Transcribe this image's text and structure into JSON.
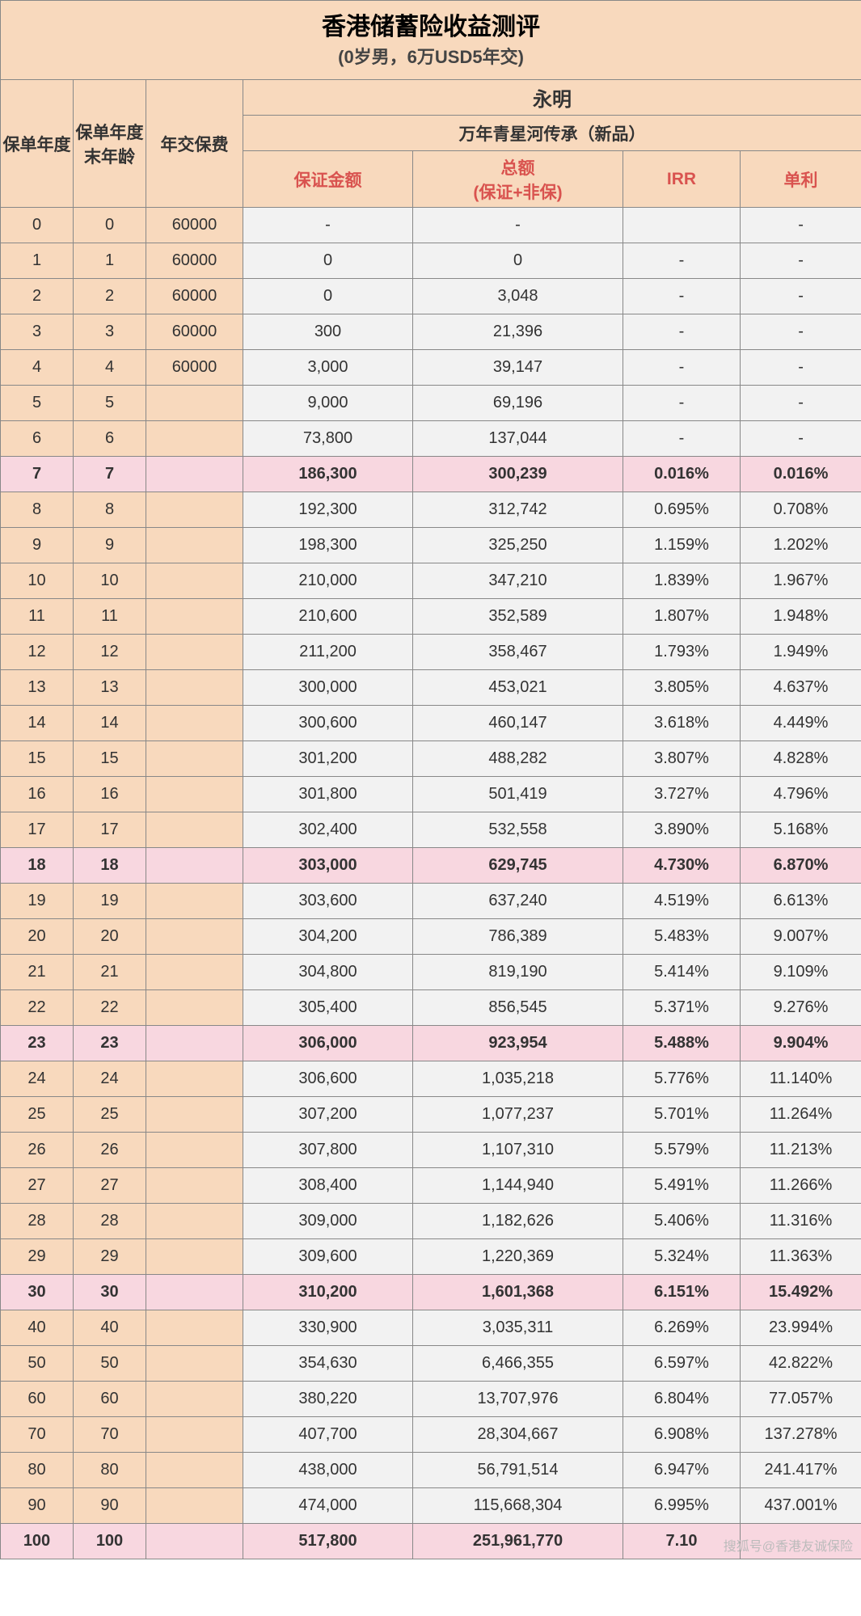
{
  "title": {
    "main": "香港储蓄险收益测评",
    "sub": "(0岁男，6万USD5年交)"
  },
  "headers": {
    "policy_year": "保单年度",
    "age_end": "保单年度末年龄",
    "annual_premium": "年交保费",
    "company": "永明",
    "product": "万年青星河传承（新品）",
    "guaranteed": "保证金额",
    "total_line1": "总额",
    "total_line2": "(保证+非保)",
    "irr": "IRR",
    "simple": "单利"
  },
  "col_widths": {
    "c1": 90,
    "c2": 90,
    "c3": 120,
    "c4": 210,
    "c5": 260,
    "c6": 145,
    "c7": 150
  },
  "colors": {
    "peach": "#f8d9bd",
    "grey": "#f2f2f2",
    "pink": "#f8d7e0",
    "border": "#888888",
    "header_red": "#d9534f"
  },
  "highlight_rows": [
    7,
    18,
    23,
    30,
    100
  ],
  "rows": [
    {
      "yr": "0",
      "age": "0",
      "prem": "60000",
      "g": "-",
      "t": "-",
      "irr": "",
      "s": "-"
    },
    {
      "yr": "1",
      "age": "1",
      "prem": "60000",
      "g": "0",
      "t": "0",
      "irr": "-",
      "s": "-"
    },
    {
      "yr": "2",
      "age": "2",
      "prem": "60000",
      "g": "0",
      "t": "3,048",
      "irr": "-",
      "s": "-"
    },
    {
      "yr": "3",
      "age": "3",
      "prem": "60000",
      "g": "300",
      "t": "21,396",
      "irr": "-",
      "s": "-"
    },
    {
      "yr": "4",
      "age": "4",
      "prem": "60000",
      "g": "3,000",
      "t": "39,147",
      "irr": "-",
      "s": "-"
    },
    {
      "yr": "5",
      "age": "5",
      "prem": "",
      "g": "9,000",
      "t": "69,196",
      "irr": "-",
      "s": "-"
    },
    {
      "yr": "6",
      "age": "6",
      "prem": "",
      "g": "73,800",
      "t": "137,044",
      "irr": "-",
      "s": "-"
    },
    {
      "yr": "7",
      "age": "7",
      "prem": "",
      "g": "186,300",
      "t": "300,239",
      "irr": "0.016%",
      "s": "0.016%"
    },
    {
      "yr": "8",
      "age": "8",
      "prem": "",
      "g": "192,300",
      "t": "312,742",
      "irr": "0.695%",
      "s": "0.708%"
    },
    {
      "yr": "9",
      "age": "9",
      "prem": "",
      "g": "198,300",
      "t": "325,250",
      "irr": "1.159%",
      "s": "1.202%"
    },
    {
      "yr": "10",
      "age": "10",
      "prem": "",
      "g": "210,000",
      "t": "347,210",
      "irr": "1.839%",
      "s": "1.967%"
    },
    {
      "yr": "11",
      "age": "11",
      "prem": "",
      "g": "210,600",
      "t": "352,589",
      "irr": "1.807%",
      "s": "1.948%"
    },
    {
      "yr": "12",
      "age": "12",
      "prem": "",
      "g": "211,200",
      "t": "358,467",
      "irr": "1.793%",
      "s": "1.949%"
    },
    {
      "yr": "13",
      "age": "13",
      "prem": "",
      "g": "300,000",
      "t": "453,021",
      "irr": "3.805%",
      "s": "4.637%"
    },
    {
      "yr": "14",
      "age": "14",
      "prem": "",
      "g": "300,600",
      "t": "460,147",
      "irr": "3.618%",
      "s": "4.449%"
    },
    {
      "yr": "15",
      "age": "15",
      "prem": "",
      "g": "301,200",
      "t": "488,282",
      "irr": "3.807%",
      "s": "4.828%"
    },
    {
      "yr": "16",
      "age": "16",
      "prem": "",
      "g": "301,800",
      "t": "501,419",
      "irr": "3.727%",
      "s": "4.796%"
    },
    {
      "yr": "17",
      "age": "17",
      "prem": "",
      "g": "302,400",
      "t": "532,558",
      "irr": "3.890%",
      "s": "5.168%"
    },
    {
      "yr": "18",
      "age": "18",
      "prem": "",
      "g": "303,000",
      "t": "629,745",
      "irr": "4.730%",
      "s": "6.870%"
    },
    {
      "yr": "19",
      "age": "19",
      "prem": "",
      "g": "303,600",
      "t": "637,240",
      "irr": "4.519%",
      "s": "6.613%"
    },
    {
      "yr": "20",
      "age": "20",
      "prem": "",
      "g": "304,200",
      "t": "786,389",
      "irr": "5.483%",
      "s": "9.007%"
    },
    {
      "yr": "21",
      "age": "21",
      "prem": "",
      "g": "304,800",
      "t": "819,190",
      "irr": "5.414%",
      "s": "9.109%"
    },
    {
      "yr": "22",
      "age": "22",
      "prem": "",
      "g": "305,400",
      "t": "856,545",
      "irr": "5.371%",
      "s": "9.276%"
    },
    {
      "yr": "23",
      "age": "23",
      "prem": "",
      "g": "306,000",
      "t": "923,954",
      "irr": "5.488%",
      "s": "9.904%"
    },
    {
      "yr": "24",
      "age": "24",
      "prem": "",
      "g": "306,600",
      "t": "1,035,218",
      "irr": "5.776%",
      "s": "11.140%"
    },
    {
      "yr": "25",
      "age": "25",
      "prem": "",
      "g": "307,200",
      "t": "1,077,237",
      "irr": "5.701%",
      "s": "11.264%"
    },
    {
      "yr": "26",
      "age": "26",
      "prem": "",
      "g": "307,800",
      "t": "1,107,310",
      "irr": "5.579%",
      "s": "11.213%"
    },
    {
      "yr": "27",
      "age": "27",
      "prem": "",
      "g": "308,400",
      "t": "1,144,940",
      "irr": "5.491%",
      "s": "11.266%"
    },
    {
      "yr": "28",
      "age": "28",
      "prem": "",
      "g": "309,000",
      "t": "1,182,626",
      "irr": "5.406%",
      "s": "11.316%"
    },
    {
      "yr": "29",
      "age": "29",
      "prem": "",
      "g": "309,600",
      "t": "1,220,369",
      "irr": "5.324%",
      "s": "11.363%"
    },
    {
      "yr": "30",
      "age": "30",
      "prem": "",
      "g": "310,200",
      "t": "1,601,368",
      "irr": "6.151%",
      "s": "15.492%"
    },
    {
      "yr": "40",
      "age": "40",
      "prem": "",
      "g": "330,900",
      "t": "3,035,311",
      "irr": "6.269%",
      "s": "23.994%"
    },
    {
      "yr": "50",
      "age": "50",
      "prem": "",
      "g": "354,630",
      "t": "6,466,355",
      "irr": "6.597%",
      "s": "42.822%"
    },
    {
      "yr": "60",
      "age": "60",
      "prem": "",
      "g": "380,220",
      "t": "13,707,976",
      "irr": "6.804%",
      "s": "77.057%"
    },
    {
      "yr": "70",
      "age": "70",
      "prem": "",
      "g": "407,700",
      "t": "28,304,667",
      "irr": "6.908%",
      "s": "137.278%"
    },
    {
      "yr": "80",
      "age": "80",
      "prem": "",
      "g": "438,000",
      "t": "56,791,514",
      "irr": "6.947%",
      "s": "241.417%"
    },
    {
      "yr": "90",
      "age": "90",
      "prem": "",
      "g": "474,000",
      "t": "115,668,304",
      "irr": "6.995%",
      "s": "437.001%"
    },
    {
      "yr": "100",
      "age": "100",
      "prem": "",
      "g": "517,800",
      "t": "251,961,770",
      "irr": "7.10",
      "s": ""
    }
  ],
  "watermark": "搜狐号@香港友诚保险"
}
